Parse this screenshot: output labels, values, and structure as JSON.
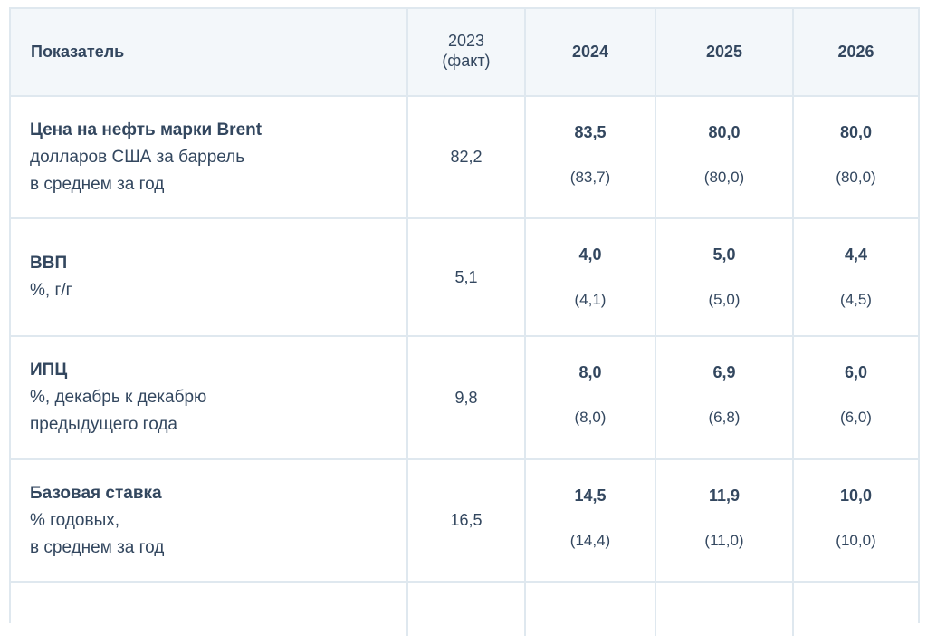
{
  "header": {
    "indicator": "Показатель",
    "fact_year": "2023",
    "fact_note": "(факт)",
    "years": [
      "2024",
      "2025",
      "2026"
    ]
  },
  "rows": [
    {
      "name": "Цена на нефть марки Brent",
      "desc": [
        "долларов США за баррель",
        "в среднем за год"
      ],
      "fact": "82,2",
      "forecast": [
        {
          "value": "83,5",
          "prev": "(83,7)"
        },
        {
          "value": "80,0",
          "prev": "(80,0)"
        },
        {
          "value": "80,0",
          "prev": "(80,0)"
        }
      ]
    },
    {
      "name": "ВВП",
      "desc": [
        "%, г/г"
      ],
      "fact": "5,1",
      "forecast": [
        {
          "value": "4,0",
          "prev": "(4,1)"
        },
        {
          "value": "5,0",
          "prev": "(5,0)"
        },
        {
          "value": "4,4",
          "prev": "(4,5)"
        }
      ]
    },
    {
      "name": "ИПЦ",
      "desc": [
        "%, декабрь к декабрю",
        "предыдущего года"
      ],
      "fact": "9,8",
      "forecast": [
        {
          "value": "8,0",
          "prev": "(8,0)"
        },
        {
          "value": "6,9",
          "prev": "(6,8)"
        },
        {
          "value": "6,0",
          "prev": "(6,0)"
        }
      ]
    },
    {
      "name": "Базовая ставка",
      "desc": [
        "% годовых,",
        "в среднем за год"
      ],
      "fact": "16,5",
      "forecast": [
        {
          "value": "14,5",
          "prev": "(14,4)"
        },
        {
          "value": "11,9",
          "prev": "(11,0)"
        },
        {
          "value": "10,0",
          "prev": "(10,0)"
        }
      ]
    }
  ],
  "colors": {
    "text": "#33475f",
    "border": "#dfe8ef",
    "header_bg": "#f3f7fa"
  }
}
